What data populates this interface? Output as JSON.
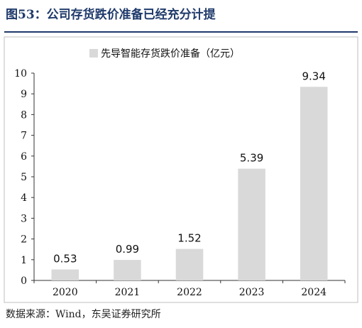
{
  "header": {
    "title": "图53：公司存货跌价准备已经充分计提"
  },
  "footer": {
    "source": "数据来源：Wind，东吴证券研究所"
  },
  "chart_data": {
    "type": "bar",
    "categories": [
      "2020",
      "2021",
      "2022",
      "2023",
      "2024"
    ],
    "series": [
      {
        "name": "先导智能存货跌价准备（亿元）",
        "values": [
          0.53,
          0.99,
          1.52,
          5.39,
          9.34
        ],
        "data_labels": [
          "0.53",
          "0.99",
          "1.52",
          "5.39",
          "9.34"
        ]
      }
    ],
    "ylim": [
      0,
      10
    ],
    "yticks": [
      "0",
      "1",
      "2",
      "3",
      "4",
      "5",
      "6",
      "7",
      "8",
      "9",
      "10"
    ],
    "grid": false,
    "legend_position": "top-center",
    "colors": {
      "bar": "#d9d9d9",
      "axis": "#333333",
      "text": "#111111"
    }
  }
}
